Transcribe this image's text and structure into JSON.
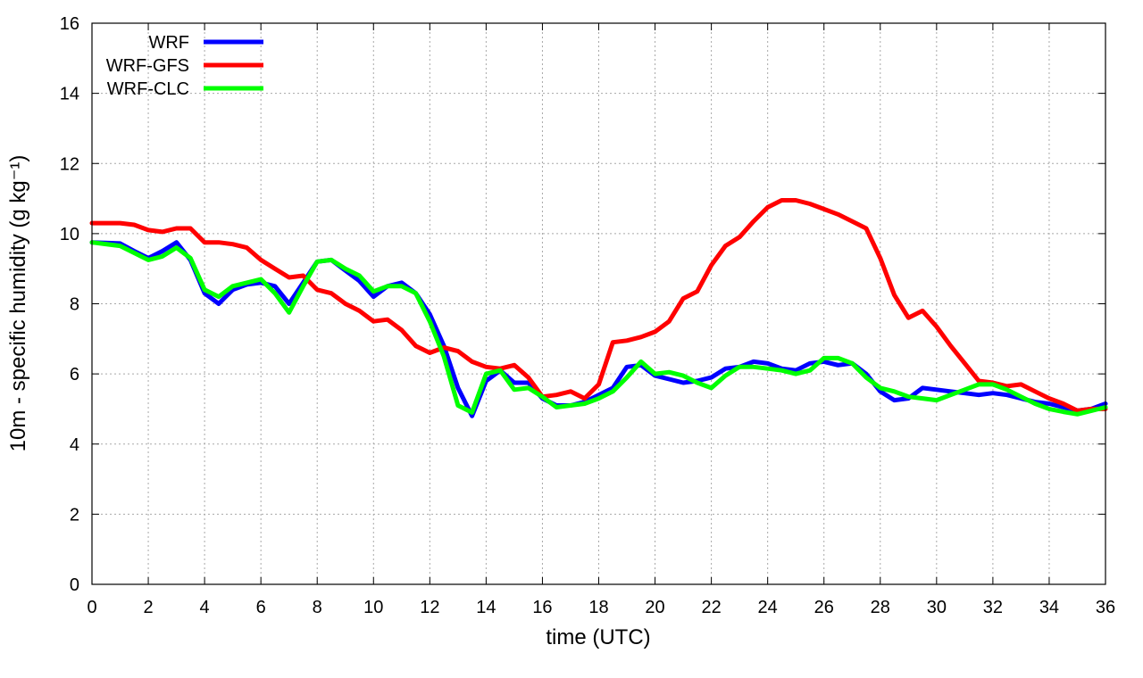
{
  "chart_data": {
    "type": "line",
    "xlabel": "time (UTC)",
    "ylabel": "10m - specific humidity (g kg⁻¹)",
    "xlim": [
      0,
      36
    ],
    "ylim": [
      0,
      16
    ],
    "xticks": [
      "0",
      "2",
      "4",
      "6",
      "8",
      "10",
      "12",
      "14",
      "16",
      "18",
      "20",
      "22",
      "24",
      "26",
      "28",
      "30",
      "32",
      "34",
      "36"
    ],
    "yticks": [
      "0",
      "2",
      "4",
      "6",
      "8",
      "10",
      "12",
      "14",
      "16"
    ],
    "grid": true,
    "legend_position": "top-left",
    "series": [
      {
        "name": "WRF",
        "color": "#0000ff",
        "points": [
          [
            0,
            9.75
          ],
          [
            1,
            9.72
          ],
          [
            1.5,
            9.5
          ],
          [
            2,
            9.3
          ],
          [
            2.5,
            9.5
          ],
          [
            3,
            9.75
          ],
          [
            3.5,
            9.25
          ],
          [
            4,
            8.3
          ],
          [
            4.5,
            8.0
          ],
          [
            5,
            8.4
          ],
          [
            5.5,
            8.55
          ],
          [
            6,
            8.6
          ],
          [
            6.5,
            8.5
          ],
          [
            7,
            8.0
          ],
          [
            7.5,
            8.6
          ],
          [
            8,
            9.2
          ],
          [
            8.5,
            9.25
          ],
          [
            9,
            8.95
          ],
          [
            9.5,
            8.65
          ],
          [
            10,
            8.2
          ],
          [
            10.5,
            8.5
          ],
          [
            11,
            8.6
          ],
          [
            11.5,
            8.3
          ],
          [
            12,
            7.7
          ],
          [
            12.5,
            6.8
          ],
          [
            13,
            5.6
          ],
          [
            13.5,
            4.8
          ],
          [
            14,
            5.8
          ],
          [
            14.5,
            6.1
          ],
          [
            15,
            5.75
          ],
          [
            15.5,
            5.75
          ],
          [
            16,
            5.3
          ],
          [
            16.5,
            5.1
          ],
          [
            17,
            5.1
          ],
          [
            17.5,
            5.2
          ],
          [
            18,
            5.4
          ],
          [
            18.5,
            5.6
          ],
          [
            19,
            6.2
          ],
          [
            19.5,
            6.25
          ],
          [
            20,
            5.95
          ],
          [
            20.5,
            5.85
          ],
          [
            21,
            5.75
          ],
          [
            21.5,
            5.8
          ],
          [
            22,
            5.9
          ],
          [
            22.5,
            6.15
          ],
          [
            23,
            6.2
          ],
          [
            23.5,
            6.35
          ],
          [
            24,
            6.3
          ],
          [
            24.5,
            6.15
          ],
          [
            25,
            6.1
          ],
          [
            25.5,
            6.3
          ],
          [
            26,
            6.35
          ],
          [
            26.5,
            6.25
          ],
          [
            27,
            6.3
          ],
          [
            27.5,
            6.0
          ],
          [
            28,
            5.5
          ],
          [
            28.5,
            5.25
          ],
          [
            29,
            5.3
          ],
          [
            29.5,
            5.6
          ],
          [
            30,
            5.55
          ],
          [
            30.5,
            5.5
          ],
          [
            31,
            5.45
          ],
          [
            31.5,
            5.4
          ],
          [
            32,
            5.45
          ],
          [
            32.5,
            5.4
          ],
          [
            33,
            5.3
          ],
          [
            33.5,
            5.2
          ],
          [
            34,
            5.15
          ],
          [
            34.5,
            5.05
          ],
          [
            35,
            4.95
          ],
          [
            35.5,
            5.0
          ],
          [
            36,
            5.15
          ]
        ]
      },
      {
        "name": "WRF-GFS",
        "color": "#ff0000",
        "points": [
          [
            0,
            10.3
          ],
          [
            1,
            10.3
          ],
          [
            1.5,
            10.25
          ],
          [
            2,
            10.1
          ],
          [
            2.5,
            10.05
          ],
          [
            3,
            10.15
          ],
          [
            3.5,
            10.15
          ],
          [
            4,
            9.75
          ],
          [
            4.5,
            9.75
          ],
          [
            5,
            9.7
          ],
          [
            5.5,
            9.6
          ],
          [
            6,
            9.25
          ],
          [
            6.5,
            9.0
          ],
          [
            7,
            8.75
          ],
          [
            7.5,
            8.8
          ],
          [
            8,
            8.4
          ],
          [
            8.5,
            8.3
          ],
          [
            9,
            8.0
          ],
          [
            9.5,
            7.8
          ],
          [
            10,
            7.5
          ],
          [
            10.5,
            7.55
          ],
          [
            11,
            7.25
          ],
          [
            11.5,
            6.8
          ],
          [
            12,
            6.6
          ],
          [
            12.5,
            6.75
          ],
          [
            13,
            6.65
          ],
          [
            13.5,
            6.35
          ],
          [
            14,
            6.2
          ],
          [
            14.5,
            6.15
          ],
          [
            15,
            6.25
          ],
          [
            15.5,
            5.9
          ],
          [
            16,
            5.35
          ],
          [
            16.5,
            5.4
          ],
          [
            17,
            5.5
          ],
          [
            17.5,
            5.3
          ],
          [
            18,
            5.7
          ],
          [
            18.5,
            6.9
          ],
          [
            19,
            6.95
          ],
          [
            19.5,
            7.05
          ],
          [
            20,
            7.2
          ],
          [
            20.5,
            7.5
          ],
          [
            21,
            8.15
          ],
          [
            21.5,
            8.35
          ],
          [
            22,
            9.1
          ],
          [
            22.5,
            9.65
          ],
          [
            23,
            9.9
          ],
          [
            23.5,
            10.35
          ],
          [
            24,
            10.75
          ],
          [
            24.5,
            10.95
          ],
          [
            25,
            10.95
          ],
          [
            25.5,
            10.85
          ],
          [
            26,
            10.7
          ],
          [
            26.5,
            10.55
          ],
          [
            27,
            10.35
          ],
          [
            27.5,
            10.15
          ],
          [
            28,
            9.3
          ],
          [
            28.5,
            8.25
          ],
          [
            29,
            7.6
          ],
          [
            29.5,
            7.8
          ],
          [
            30,
            7.35
          ],
          [
            30.5,
            6.8
          ],
          [
            31,
            6.3
          ],
          [
            31.5,
            5.8
          ],
          [
            32,
            5.75
          ],
          [
            32.5,
            5.65
          ],
          [
            33,
            5.7
          ],
          [
            33.5,
            5.5
          ],
          [
            34,
            5.3
          ],
          [
            34.5,
            5.15
          ],
          [
            35,
            4.95
          ],
          [
            35.5,
            5.0
          ],
          [
            36,
            5.0
          ]
        ]
      },
      {
        "name": "WRF-CLC",
        "color": "#00ff00",
        "points": [
          [
            0,
            9.75
          ],
          [
            1,
            9.65
          ],
          [
            1.5,
            9.45
          ],
          [
            2,
            9.25
          ],
          [
            2.5,
            9.35
          ],
          [
            3,
            9.6
          ],
          [
            3.5,
            9.3
          ],
          [
            4,
            8.4
          ],
          [
            4.5,
            8.2
          ],
          [
            5,
            8.5
          ],
          [
            5.5,
            8.6
          ],
          [
            6,
            8.7
          ],
          [
            6.5,
            8.3
          ],
          [
            7,
            7.75
          ],
          [
            7.5,
            8.5
          ],
          [
            8,
            9.2
          ],
          [
            8.5,
            9.25
          ],
          [
            9,
            9.0
          ],
          [
            9.5,
            8.8
          ],
          [
            10,
            8.35
          ],
          [
            10.5,
            8.5
          ],
          [
            11,
            8.5
          ],
          [
            11.5,
            8.3
          ],
          [
            12,
            7.5
          ],
          [
            12.5,
            6.5
          ],
          [
            13,
            5.1
          ],
          [
            13.5,
            4.9
          ],
          [
            14,
            6.0
          ],
          [
            14.5,
            6.1
          ],
          [
            15,
            5.55
          ],
          [
            15.5,
            5.6
          ],
          [
            16,
            5.35
          ],
          [
            16.5,
            5.05
          ],
          [
            17,
            5.1
          ],
          [
            17.5,
            5.15
          ],
          [
            18,
            5.3
          ],
          [
            18.5,
            5.5
          ],
          [
            19,
            5.9
          ],
          [
            19.5,
            6.35
          ],
          [
            20,
            6.0
          ],
          [
            20.5,
            6.05
          ],
          [
            21,
            5.95
          ],
          [
            21.5,
            5.75
          ],
          [
            22,
            5.6
          ],
          [
            22.5,
            5.95
          ],
          [
            23,
            6.2
          ],
          [
            23.5,
            6.2
          ],
          [
            24,
            6.15
          ],
          [
            24.5,
            6.1
          ],
          [
            25,
            6.0
          ],
          [
            25.5,
            6.1
          ],
          [
            26,
            6.45
          ],
          [
            26.5,
            6.45
          ],
          [
            27,
            6.3
          ],
          [
            27.5,
            5.9
          ],
          [
            28,
            5.6
          ],
          [
            28.5,
            5.5
          ],
          [
            29,
            5.35
          ],
          [
            29.5,
            5.3
          ],
          [
            30,
            5.25
          ],
          [
            30.5,
            5.4
          ],
          [
            31,
            5.55
          ],
          [
            31.5,
            5.7
          ],
          [
            32,
            5.7
          ],
          [
            32.5,
            5.55
          ],
          [
            33,
            5.35
          ],
          [
            33.5,
            5.15
          ],
          [
            34,
            5.0
          ],
          [
            34.5,
            4.92
          ],
          [
            35,
            4.85
          ],
          [
            35.5,
            4.95
          ],
          [
            36,
            5.05
          ]
        ]
      }
    ]
  }
}
